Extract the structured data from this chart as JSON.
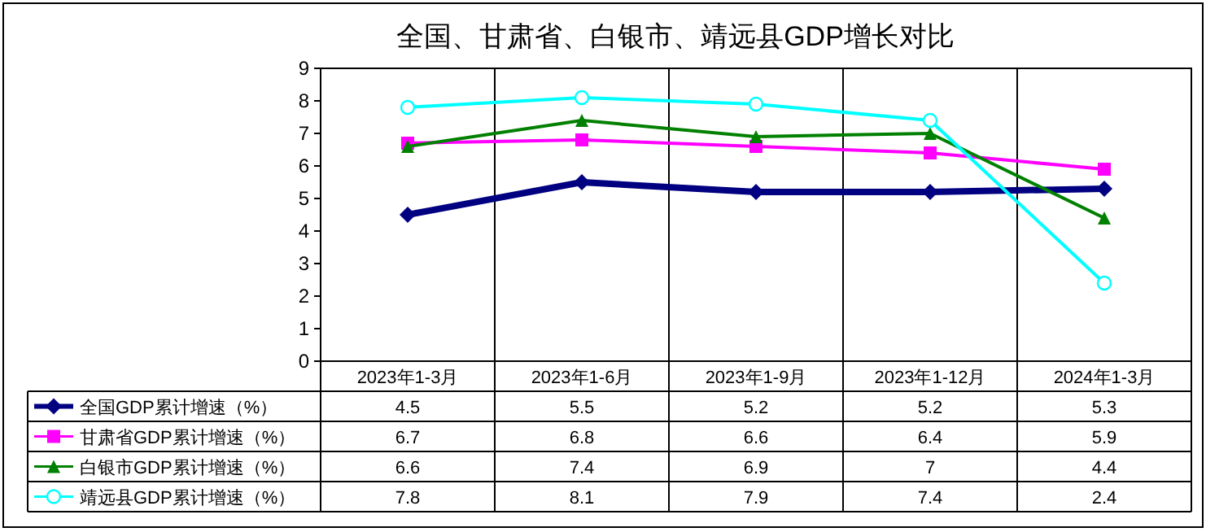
{
  "chart_data": {
    "type": "line",
    "title": "全国、甘肃省、白银市、靖远县GDP增长对比",
    "categories": [
      "2023年1-3月",
      "2023年1-6月",
      "2023年1-9月",
      "2023年1-12月",
      "2024年1-3月"
    ],
    "series": [
      {
        "name": "全国GDP累计增速（%）",
        "color": "#000080",
        "marker": "diamond",
        "values": [
          4.5,
          5.5,
          5.2,
          5.2,
          5.3
        ]
      },
      {
        "name": "甘肃省GDP累计增速（%）",
        "color": "#ff00ff",
        "marker": "square",
        "values": [
          6.7,
          6.8,
          6.6,
          6.4,
          5.9
        ]
      },
      {
        "name": "白银市GDP累计增速（%）",
        "color": "#008000",
        "marker": "triangle",
        "values": [
          6.6,
          7.4,
          6.9,
          7,
          4.4
        ]
      },
      {
        "name": "靖远县GDP累计增速（%）",
        "color": "#00ffff",
        "marker": "circle",
        "values": [
          7.8,
          8.1,
          7.9,
          7.4,
          2.4
        ]
      }
    ],
    "ylim": [
      0,
      9
    ],
    "yticks": [
      0,
      1,
      2,
      3,
      4,
      5,
      6,
      7,
      8,
      9
    ],
    "grid": false,
    "legend": "bottom",
    "data_labels": true
  }
}
